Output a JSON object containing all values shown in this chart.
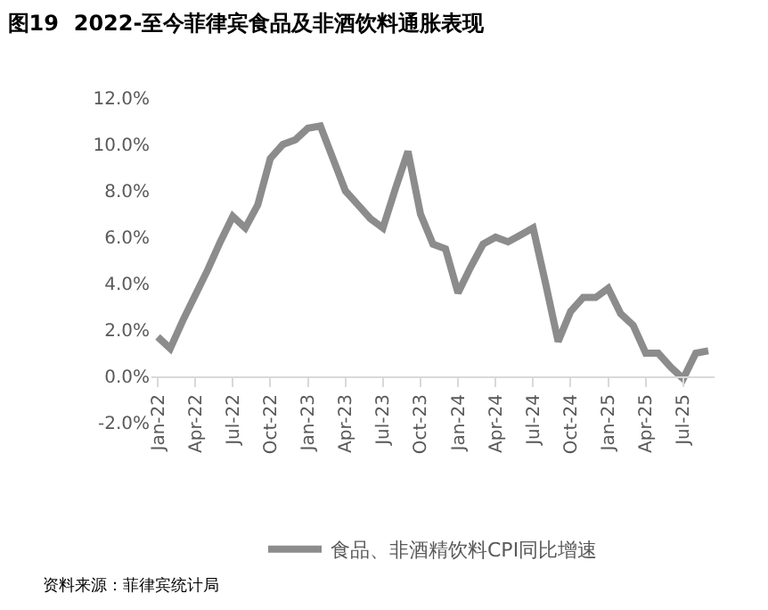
{
  "chart_data": {
    "type": "line",
    "title": "图19  2022-至今菲律宾食品及非酒饮料通胀表现",
    "categories": [
      "Jan-22",
      null,
      null,
      "Apr-22",
      null,
      null,
      "Jul-22",
      null,
      null,
      "Oct-22",
      null,
      null,
      "Jan-23",
      null,
      null,
      "Apr-23",
      null,
      null,
      "Jul-23",
      null,
      null,
      "Oct-23",
      null,
      null,
      "Jan-24",
      null,
      null,
      "Apr-24",
      null,
      null,
      "Jul-24",
      null,
      null,
      "Oct-24",
      null,
      null,
      "Jan-25",
      null,
      null,
      "Apr-25",
      null,
      null,
      "Jul-25",
      null,
      null
    ],
    "series": [
      {
        "name": "食品、非酒精饮料CPI同比增速",
        "color": "#8c8c8c",
        "values": [
          1.7,
          1.2,
          2.4,
          3.5,
          4.6,
          5.8,
          6.9,
          6.4,
          7.4,
          9.4,
          10.0,
          10.2,
          10.7,
          10.8,
          9.4,
          8.0,
          7.4,
          6.8,
          6.4,
          8.1,
          9.7,
          7.0,
          5.7,
          5.5,
          3.6,
          4.7,
          5.7,
          6.0,
          5.8,
          6.1,
          6.4,
          4.0,
          1.5,
          2.8,
          3.4,
          3.4,
          3.8,
          2.7,
          2.2,
          1.0,
          1.0,
          0.4,
          -0.1,
          1.0,
          1.1
        ]
      }
    ],
    "ylim": [
      -2,
      12
    ],
    "yticks": [
      {
        "value": -2,
        "label": "-2.0%"
      },
      {
        "value": 0,
        "label": "0.0%"
      },
      {
        "value": 2,
        "label": "2.0%"
      },
      {
        "value": 4,
        "label": "4.0%"
      },
      {
        "value": 6,
        "label": "6.0%"
      },
      {
        "value": 8,
        "label": "8.0%"
      },
      {
        "value": 10,
        "label": "10.0%"
      },
      {
        "value": 12,
        "label": "12.0%"
      }
    ],
    "legend": "bottom",
    "marker": "none",
    "line_style": "solid",
    "annotations": [
      "资料来源：菲律宾统计局"
    ]
  }
}
